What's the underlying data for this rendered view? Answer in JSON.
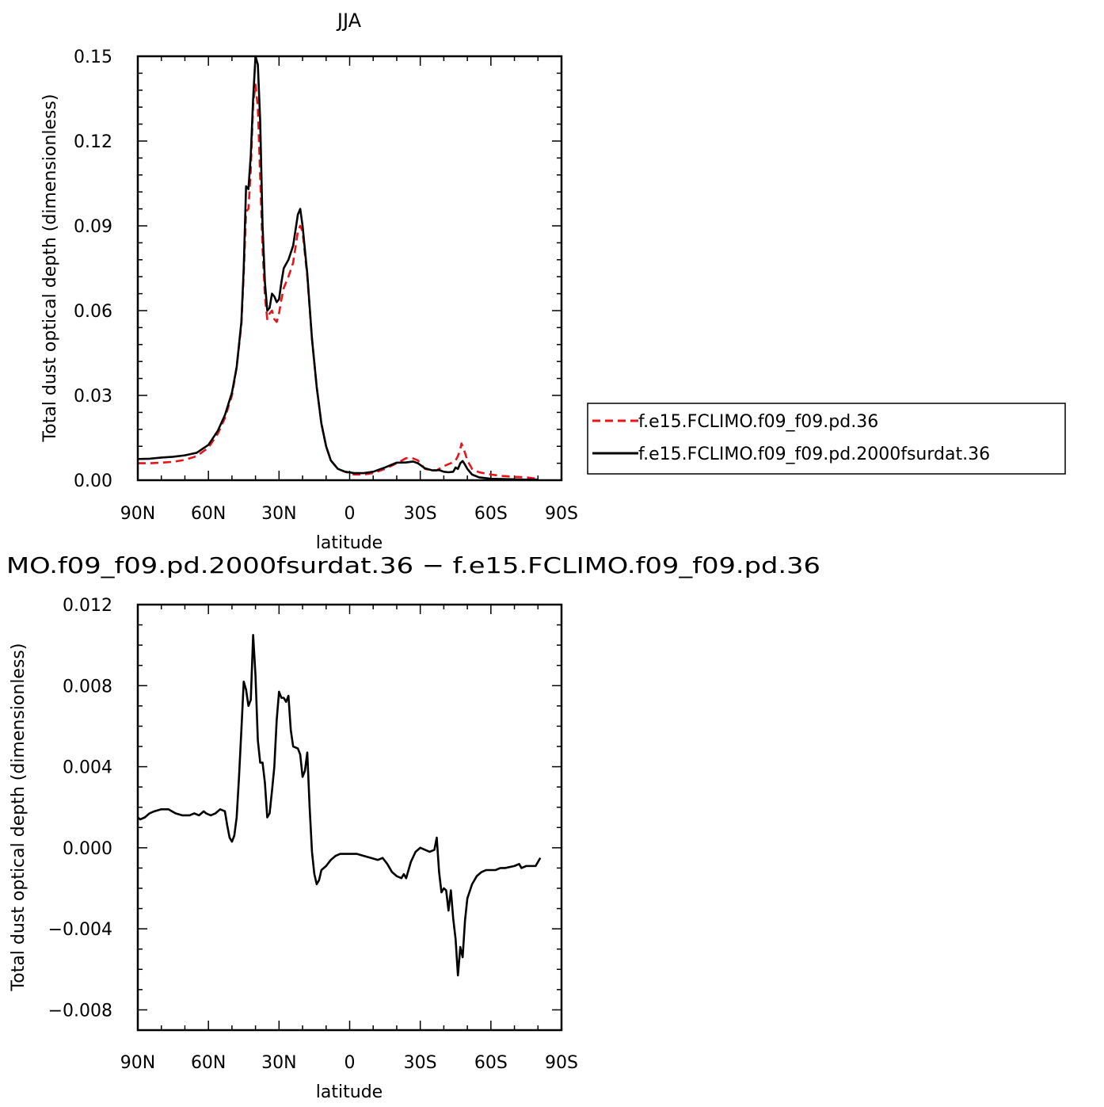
{
  "chart_data": [
    {
      "type": "line",
      "title": "JJA",
      "xlabel": "latitude",
      "ylabel": "Total dust optical depth (dimensionless)",
      "xlim": [
        90,
        -90
      ],
      "ylim": [
        0,
        0.15
      ],
      "xticks": [
        90,
        60,
        30,
        0,
        -30,
        -60,
        -90
      ],
      "xtick_labels": [
        "90N",
        "60N",
        "30N",
        "0",
        "30S",
        "60S",
        "90S"
      ],
      "yticks": [
        0,
        0.03,
        0.06,
        0.09,
        0.12,
        0.15
      ],
      "ytick_labels": [
        "0.00",
        "0.03",
        "0.06",
        "0.09",
        "0.12",
        "0.15"
      ],
      "legend_position": "right",
      "series": [
        {
          "name": "f.e15.FCLIMO.f09_f09.pd.36",
          "color": "#e8141a",
          "dash": "dashed",
          "points": [
            [
              90,
              0.006
            ],
            [
              85,
              0.006
            ],
            [
              80,
              0.0062
            ],
            [
              75,
              0.0065
            ],
            [
              70,
              0.0072
            ],
            [
              65,
              0.0085
            ],
            [
              60,
              0.0115
            ],
            [
              56,
              0.0165
            ],
            [
              53,
              0.022
            ],
            [
              50,
              0.03
            ],
            [
              48,
              0.04
            ],
            [
              46,
              0.055
            ],
            [
              45,
              0.073
            ],
            [
              44,
              0.095
            ],
            [
              43,
              0.096
            ],
            [
              42,
              0.11
            ],
            [
              41,
              0.133
            ],
            [
              40,
              0.14
            ],
            [
              39,
              0.132
            ],
            [
              38,
              0.107
            ],
            [
              37,
              0.082
            ],
            [
              36,
              0.065
            ],
            [
              35,
              0.057
            ],
            [
              34,
              0.059
            ],
            [
              33,
              0.06
            ],
            [
              32,
              0.057
            ],
            [
              31,
              0.056
            ],
            [
              30,
              0.059
            ],
            [
              29,
              0.064
            ],
            [
              28,
              0.068
            ],
            [
              26,
              0.072
            ],
            [
              24,
              0.077
            ],
            [
              22,
              0.088
            ],
            [
              21,
              0.09
            ],
            [
              20,
              0.088
            ],
            [
              18,
              0.072
            ],
            [
              16,
              0.05
            ],
            [
              14,
              0.033
            ],
            [
              12,
              0.02
            ],
            [
              10,
              0.012
            ],
            [
              8,
              0.007
            ],
            [
              5,
              0.004
            ],
            [
              2,
              0.003
            ],
            [
              -2,
              0.002
            ],
            [
              -6,
              0.002
            ],
            [
              -10,
              0.0025
            ],
            [
              -15,
              0.004
            ],
            [
              -20,
              0.006
            ],
            [
              -24,
              0.0078
            ],
            [
              -27,
              0.0077
            ],
            [
              -29,
              0.007
            ],
            [
              -32,
              0.004
            ],
            [
              -35,
              0.0035
            ],
            [
              -37,
              0.0035
            ],
            [
              -40,
              0.005
            ],
            [
              -43,
              0.006
            ],
            [
              -45,
              0.007
            ],
            [
              -46,
              0.0085
            ],
            [
              -47,
              0.011
            ],
            [
              -47.5,
              0.013
            ],
            [
              -48.5,
              0.011
            ],
            [
              -50,
              0.007
            ],
            [
              -52,
              0.004
            ],
            [
              -55,
              0.0028
            ],
            [
              -60,
              0.002
            ],
            [
              -65,
              0.0015
            ],
            [
              -70,
              0.0012
            ],
            [
              -75,
              0.001
            ],
            [
              -80,
              0.0005
            ]
          ]
        },
        {
          "name": "f.e15.FCLIMO.f09_f09.pd.2000fsurdat.36",
          "color": "#000000",
          "dash": "solid",
          "points": [
            [
              90,
              0.0075
            ],
            [
              85,
              0.0076
            ],
            [
              80,
              0.008
            ],
            [
              75,
              0.0083
            ],
            [
              70,
              0.0088
            ],
            [
              65,
              0.0097
            ],
            [
              60,
              0.0125
            ],
            [
              56,
              0.0175
            ],
            [
              53,
              0.023
            ],
            [
              50,
              0.031
            ],
            [
              48,
              0.04
            ],
            [
              46,
              0.056
            ],
            [
              45,
              0.075
            ],
            [
              44,
              0.104
            ],
            [
              43,
              0.103
            ],
            [
              42,
              0.115
            ],
            [
              41,
              0.135
            ],
            [
              40,
              0.15
            ],
            [
              39,
              0.147
            ],
            [
              38,
              0.127
            ],
            [
              37,
              0.09
            ],
            [
              36,
              0.07
            ],
            [
              35,
              0.06
            ],
            [
              34,
              0.061
            ],
            [
              33,
              0.066
            ],
            [
              32,
              0.065
            ],
            [
              31,
              0.063
            ],
            [
              30,
              0.064
            ],
            [
              29,
              0.07
            ],
            [
              28,
              0.075
            ],
            [
              26,
              0.078
            ],
            [
              24,
              0.083
            ],
            [
              22,
              0.094
            ],
            [
              21,
              0.096
            ],
            [
              20,
              0.09
            ],
            [
              18,
              0.073
            ],
            [
              16,
              0.05
            ],
            [
              14,
              0.033
            ],
            [
              12,
              0.02
            ],
            [
              10,
              0.012
            ],
            [
              8,
              0.007
            ],
            [
              5,
              0.004
            ],
            [
              2,
              0.003
            ],
            [
              -2,
              0.0025
            ],
            [
              -6,
              0.0025
            ],
            [
              -10,
              0.003
            ],
            [
              -15,
              0.0045
            ],
            [
              -20,
              0.0062
            ],
            [
              -24,
              0.0063
            ],
            [
              -27,
              0.0066
            ],
            [
              -29,
              0.006
            ],
            [
              -32,
              0.0042
            ],
            [
              -35,
              0.0035
            ],
            [
              -37,
              0.0035
            ],
            [
              -38,
              0.0036
            ],
            [
              -40,
              0.003
            ],
            [
              -42,
              0.0028
            ],
            [
              -44,
              0.003
            ],
            [
              -45,
              0.0045
            ],
            [
              -46,
              0.004
            ],
            [
              -47,
              0.006
            ],
            [
              -48,
              0.0068
            ],
            [
              -49,
              0.0055
            ],
            [
              -50,
              0.004
            ],
            [
              -52,
              0.002
            ],
            [
              -55,
              0.001
            ],
            [
              -60,
              0.0005
            ],
            [
              -65,
              0.0004
            ],
            [
              -70,
              0.0003
            ],
            [
              -75,
              0.0002
            ],
            [
              -80,
              0.0002
            ]
          ]
        }
      ]
    },
    {
      "type": "line",
      "title": "MO.f09_f09.pd.2000fsurdat.36 − f.e15.FCLIMO.f09_f09.pd.36",
      "xlabel": "latitude",
      "ylabel": "Total dust optical depth (dimensionless)",
      "xlim": [
        90,
        -90
      ],
      "ylim": [
        -0.009,
        0.012
      ],
      "xticks": [
        90,
        60,
        30,
        0,
        -30,
        -60,
        -90
      ],
      "xtick_labels": [
        "90N",
        "60N",
        "30N",
        "0",
        "30S",
        "60S",
        "90S"
      ],
      "yticks": [
        0.012,
        0.008,
        0.004,
        0.0,
        -0.004,
        -0.008
      ],
      "ytick_labels": [
        "0.012",
        "0.008",
        "0.004",
        "0.000",
        "−0.004",
        "−0.008"
      ],
      "series": [
        {
          "color": "#000000",
          "dash": "solid",
          "points": [
            [
              90,
              0.0015
            ],
            [
              89,
              0.0014
            ],
            [
              87,
              0.0015
            ],
            [
              85,
              0.0017
            ],
            [
              83,
              0.0018
            ],
            [
              80,
              0.0019
            ],
            [
              77,
              0.0019
            ],
            [
              74,
              0.0017
            ],
            [
              71,
              0.0016
            ],
            [
              68,
              0.0016
            ],
            [
              66,
              0.0017
            ],
            [
              64,
              0.0016
            ],
            [
              62,
              0.0018
            ],
            [
              61,
              0.0017
            ],
            [
              59,
              0.0016
            ],
            [
              57,
              0.0017
            ],
            [
              55,
              0.0019
            ],
            [
              53,
              0.0018
            ],
            [
              52,
              0.0011
            ],
            [
              51,
              0.0005
            ],
            [
              50,
              0.0003
            ],
            [
              49,
              0.0006
            ],
            [
              48,
              0.0015
            ],
            [
              47,
              0.0035
            ],
            [
              46,
              0.0058
            ],
            [
              45,
              0.0082
            ],
            [
              44,
              0.0078
            ],
            [
              43,
              0.007
            ],
            [
              42,
              0.0073
            ],
            [
              41,
              0.0105
            ],
            [
              40,
              0.0085
            ],
            [
              39,
              0.0053
            ],
            [
              38,
              0.0042
            ],
            [
              37,
              0.0042
            ],
            [
              36,
              0.0032
            ],
            [
              35,
              0.0015
            ],
            [
              34,
              0.0017
            ],
            [
              33,
              0.0028
            ],
            [
              32,
              0.004
            ],
            [
              31,
              0.0063
            ],
            [
              30,
              0.0077
            ],
            [
              29,
              0.0074
            ],
            [
              28,
              0.0074
            ],
            [
              27,
              0.0072
            ],
            [
              26,
              0.0075
            ],
            [
              25,
              0.0058
            ],
            [
              24,
              0.005
            ],
            [
              22,
              0.0049
            ],
            [
              21,
              0.0046
            ],
            [
              20,
              0.0035
            ],
            [
              19,
              0.0038
            ],
            [
              18,
              0.0047
            ],
            [
              17,
              0.002
            ],
            [
              16,
              -0.0002
            ],
            [
              15,
              -0.0013
            ],
            [
              14,
              -0.0018
            ],
            [
              13,
              -0.0016
            ],
            [
              12,
              -0.0011
            ],
            [
              10,
              -0.0009
            ],
            [
              8,
              -0.0006
            ],
            [
              6,
              -0.0004
            ],
            [
              4,
              -0.0003
            ],
            [
              2,
              -0.0003
            ],
            [
              0,
              -0.0003
            ],
            [
              -3,
              -0.0003
            ],
            [
              -6,
              -0.0004
            ],
            [
              -9,
              -0.0005
            ],
            [
              -12,
              -0.0006
            ],
            [
              -14,
              -0.0005
            ],
            [
              -16,
              -0.0008
            ],
            [
              -18,
              -0.0012
            ],
            [
              -20,
              -0.0014
            ],
            [
              -22,
              -0.0015
            ],
            [
              -23,
              -0.0013
            ],
            [
              -24,
              -0.0015
            ],
            [
              -26,
              -0.0007
            ],
            [
              -28,
              -0.0002
            ],
            [
              -30,
              0.0
            ],
            [
              -32,
              -0.0001
            ],
            [
              -34,
              -0.0002
            ],
            [
              -36,
              -0.0001
            ],
            [
              -37,
              0.0005
            ],
            [
              -38,
              -0.0012
            ],
            [
              -39,
              -0.0022
            ],
            [
              -40,
              -0.002
            ],
            [
              -41,
              -0.0021
            ],
            [
              -42,
              -0.0031
            ],
            [
              -43,
              -0.0021
            ],
            [
              -44,
              -0.0035
            ],
            [
              -45,
              -0.0045
            ],
            [
              -46,
              -0.0063
            ],
            [
              -47,
              -0.0049
            ],
            [
              -48,
              -0.0054
            ],
            [
              -49,
              -0.0036
            ],
            [
              -50,
              -0.0025
            ],
            [
              -52,
              -0.0018
            ],
            [
              -54,
              -0.0014
            ],
            [
              -56,
              -0.0012
            ],
            [
              -58,
              -0.0011
            ],
            [
              -62,
              -0.0011
            ],
            [
              -64,
              -0.001
            ],
            [
              -66,
              -0.001
            ],
            [
              -70,
              -0.0009
            ],
            [
              -72,
              -0.0008
            ],
            [
              -73,
              -0.001
            ],
            [
              -75,
              -0.0009
            ],
            [
              -78,
              -0.0009
            ],
            [
              -79,
              -0.0009
            ],
            [
              -80,
              -0.0007
            ],
            [
              -81,
              -0.0005
            ]
          ]
        }
      ]
    }
  ]
}
